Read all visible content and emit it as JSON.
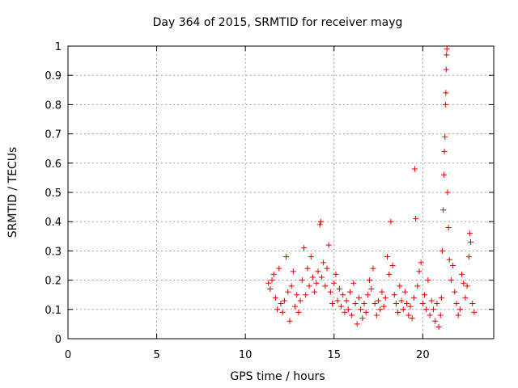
{
  "chart_data": {
    "type": "scatter",
    "title": "Day 364 of 2015, SRMTID for receiver mayg",
    "xlabel": "GPS time / hours",
    "ylabel": "SRMTID / TECUs",
    "xlim": [
      0,
      24
    ],
    "ylim": [
      0,
      1
    ],
    "x_ticks": [
      0,
      5,
      10,
      15,
      20
    ],
    "y_ticks": [
      0,
      0.1,
      0.2,
      0.3,
      0.4,
      0.5,
      0.6,
      0.7,
      0.8,
      0.9,
      1
    ],
    "x_tick_labels": [
      "0",
      "5",
      "10",
      "15",
      "20"
    ],
    "y_tick_labels": [
      "0",
      "0.1",
      "0.2",
      "0.3",
      "0.4",
      "0.5",
      "0.6",
      "0.7",
      "0.8",
      "0.9",
      "1"
    ],
    "grid": true,
    "marker": "+",
    "color": "#e00000",
    "series": [
      {
        "name": "SRMTID",
        "points": [
          [
            11.3,
            0.19
          ],
          [
            11.4,
            0.17
          ],
          [
            11.5,
            0.2
          ],
          [
            11.6,
            0.22
          ],
          [
            11.7,
            0.14
          ],
          [
            11.8,
            0.1
          ],
          [
            11.9,
            0.24
          ],
          [
            12.0,
            0.12
          ],
          [
            12.1,
            0.09
          ],
          [
            12.2,
            0.13
          ],
          [
            12.3,
            0.28
          ],
          [
            12.4,
            0.16
          ],
          [
            12.5,
            0.06
          ],
          [
            12.6,
            0.18
          ],
          [
            12.7,
            0.23
          ],
          [
            12.8,
            0.11
          ],
          [
            12.9,
            0.15
          ],
          [
            13.0,
            0.09
          ],
          [
            13.1,
            0.13
          ],
          [
            13.2,
            0.2
          ],
          [
            13.3,
            0.31
          ],
          [
            13.4,
            0.15
          ],
          [
            13.5,
            0.24
          ],
          [
            13.6,
            0.18
          ],
          [
            13.7,
            0.28
          ],
          [
            13.8,
            0.21
          ],
          [
            13.9,
            0.16
          ],
          [
            14.0,
            0.19
          ],
          [
            14.1,
            0.23
          ],
          [
            14.2,
            0.39
          ],
          [
            14.25,
            0.4
          ],
          [
            14.3,
            0.21
          ],
          [
            14.4,
            0.26
          ],
          [
            14.5,
            0.18
          ],
          [
            14.6,
            0.24
          ],
          [
            14.7,
            0.32
          ],
          [
            14.8,
            0.16
          ],
          [
            14.9,
            0.12
          ],
          [
            15.0,
            0.19
          ],
          [
            15.1,
            0.22
          ],
          [
            15.2,
            0.13
          ],
          [
            15.3,
            0.17
          ],
          [
            15.4,
            0.11
          ],
          [
            15.5,
            0.15
          ],
          [
            15.6,
            0.09
          ],
          [
            15.7,
            0.13
          ],
          [
            15.8,
            0.1
          ],
          [
            15.9,
            0.16
          ],
          [
            16.0,
            0.08
          ],
          [
            16.1,
            0.19
          ],
          [
            16.2,
            0.12
          ],
          [
            16.3,
            0.05
          ],
          [
            16.4,
            0.14
          ],
          [
            16.5,
            0.1
          ],
          [
            16.6,
            0.07
          ],
          [
            16.7,
            0.12
          ],
          [
            16.8,
            0.09
          ],
          [
            16.9,
            0.15
          ],
          [
            17.0,
            0.2
          ],
          [
            17.1,
            0.17
          ],
          [
            17.2,
            0.24
          ],
          [
            17.3,
            0.12
          ],
          [
            17.4,
            0.08
          ],
          [
            17.5,
            0.13
          ],
          [
            17.6,
            0.1
          ],
          [
            17.7,
            0.16
          ],
          [
            17.8,
            0.11
          ],
          [
            17.9,
            0.14
          ],
          [
            18.0,
            0.28
          ],
          [
            18.1,
            0.22
          ],
          [
            18.2,
            0.4
          ],
          [
            18.3,
            0.25
          ],
          [
            18.4,
            0.15
          ],
          [
            18.5,
            0.12
          ],
          [
            18.6,
            0.09
          ],
          [
            18.7,
            0.18
          ],
          [
            18.8,
            0.13
          ],
          [
            18.9,
            0.1
          ],
          [
            19.0,
            0.16
          ],
          [
            19.1,
            0.12
          ],
          [
            19.2,
            0.08
          ],
          [
            19.3,
            0.11
          ],
          [
            19.4,
            0.07
          ],
          [
            19.5,
            0.14
          ],
          [
            19.55,
            0.58
          ],
          [
            19.6,
            0.41
          ],
          [
            19.7,
            0.18
          ],
          [
            19.8,
            0.23
          ],
          [
            19.9,
            0.26
          ],
          [
            20.0,
            0.12
          ],
          [
            20.1,
            0.15
          ],
          [
            20.2,
            0.1
          ],
          [
            20.3,
            0.2
          ],
          [
            20.4,
            0.08
          ],
          [
            20.5,
            0.13
          ],
          [
            20.6,
            0.1
          ],
          [
            20.7,
            0.06
          ],
          [
            20.8,
            0.12
          ],
          [
            20.9,
            0.04
          ],
          [
            21.0,
            0.08
          ],
          [
            21.05,
            0.14
          ],
          [
            21.1,
            0.3
          ],
          [
            21.15,
            0.44
          ],
          [
            21.2,
            0.56
          ],
          [
            21.22,
            0.64
          ],
          [
            21.25,
            0.69
          ],
          [
            21.28,
            0.8
          ],
          [
            21.3,
            0.84
          ],
          [
            21.32,
            0.92
          ],
          [
            21.34,
            0.97
          ],
          [
            21.36,
            0.99
          ],
          [
            21.4,
            0.5
          ],
          [
            21.45,
            0.38
          ],
          [
            21.5,
            0.27
          ],
          [
            21.6,
            0.2
          ],
          [
            21.7,
            0.25
          ],
          [
            21.8,
            0.16
          ],
          [
            21.9,
            0.12
          ],
          [
            22.0,
            0.08
          ],
          [
            22.1,
            0.1
          ],
          [
            22.2,
            0.22
          ],
          [
            22.3,
            0.19
          ],
          [
            22.4,
            0.14
          ],
          [
            22.5,
            0.18
          ],
          [
            22.6,
            0.28
          ],
          [
            22.65,
            0.36
          ],
          [
            22.7,
            0.33
          ],
          [
            22.8,
            0.12
          ],
          [
            22.9,
            0.09
          ]
        ]
      }
    ]
  }
}
